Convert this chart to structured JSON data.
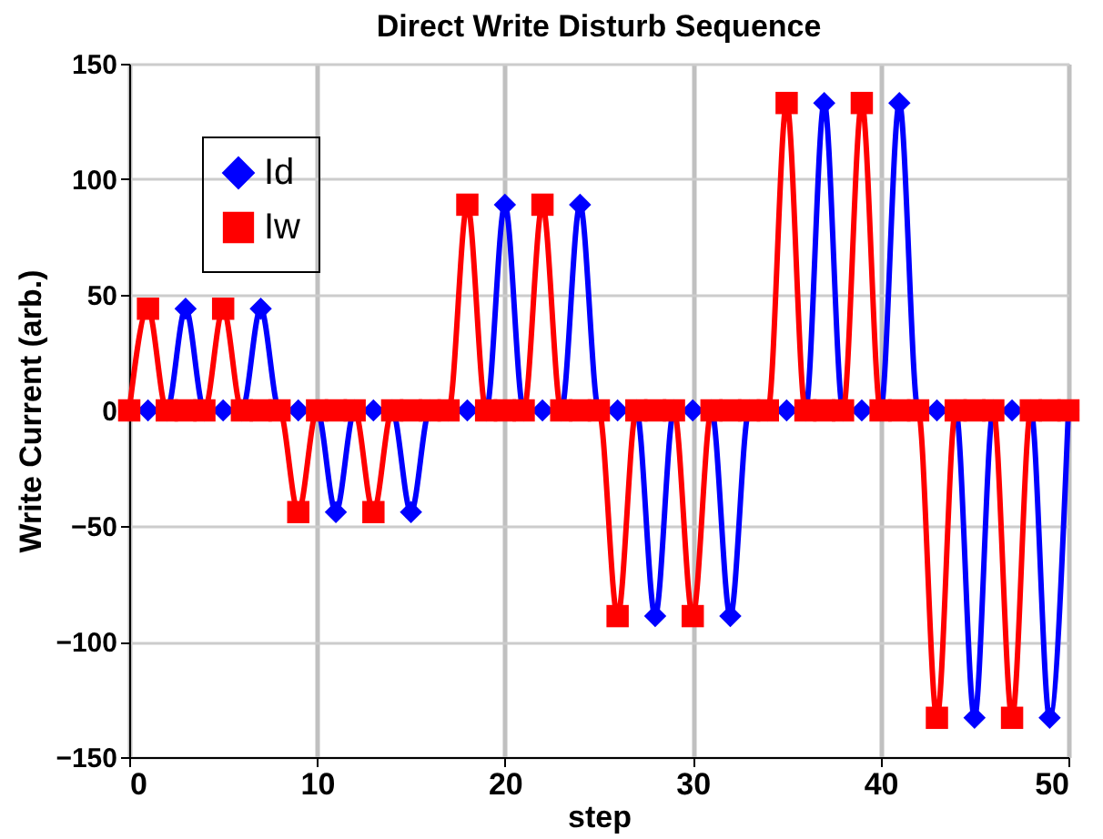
{
  "chart_data": {
    "type": "line",
    "title": "Direct Write Disturb Sequence",
    "xlabel": "step",
    "ylabel": "Write Current (arb.)",
    "x": [
      0,
      1,
      2,
      3,
      4,
      5,
      6,
      7,
      8,
      9,
      10,
      11,
      12,
      13,
      14,
      15,
      16,
      17,
      18,
      19,
      20,
      21,
      22,
      23,
      24,
      25,
      26,
      27,
      28,
      29,
      30,
      31,
      32,
      33,
      34,
      35,
      36,
      37,
      38,
      39,
      40,
      41,
      42,
      43,
      44,
      45,
      46,
      47,
      48,
      49,
      50
    ],
    "series": [
      {
        "name": "Id",
        "color": "#0000ff",
        "marker": "diamond",
        "values": [
          0,
          0,
          0,
          44,
          0,
          0,
          0,
          44,
          0,
          0,
          0,
          -44,
          0,
          0,
          0,
          -44,
          0,
          0,
          0,
          0,
          89,
          0,
          0,
          0,
          89,
          0,
          0,
          0,
          -89,
          0,
          0,
          0,
          -89,
          0,
          0,
          0,
          0,
          133,
          0,
          0,
          0,
          133,
          0,
          0,
          0,
          -133,
          0,
          0,
          0,
          -133,
          0
        ]
      },
      {
        "name": "Iw",
        "color": "#ff0000",
        "marker": "square",
        "values": [
          0,
          44,
          0,
          0,
          0,
          44,
          0,
          0,
          0,
          -44,
          0,
          0,
          0,
          -44,
          0,
          0,
          0,
          0,
          89,
          0,
          0,
          0,
          89,
          0,
          0,
          0,
          -89,
          0,
          0,
          0,
          -89,
          0,
          0,
          0,
          0,
          133,
          0,
          0,
          0,
          133,
          0,
          0,
          0,
          -133,
          0,
          0,
          0,
          -133,
          0,
          0,
          0
        ]
      }
    ],
    "xlim": [
      0,
      50
    ],
    "xticks": [
      0,
      10,
      20,
      30,
      40,
      50
    ],
    "ylim": [
      -150,
      150
    ],
    "yticks": [
      -150,
      -100,
      -50,
      0,
      50,
      100,
      150
    ],
    "grid": true,
    "legend": "top left",
    "line_style": "solid"
  }
}
